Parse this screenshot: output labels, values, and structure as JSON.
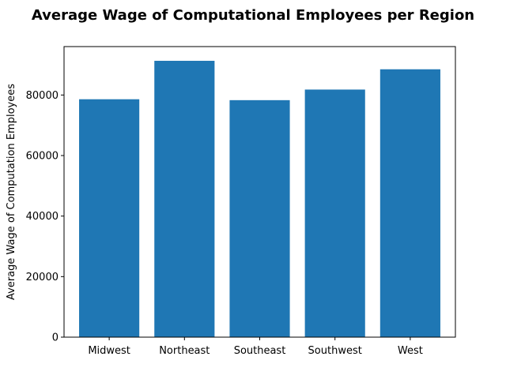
{
  "chart_data": {
    "type": "bar",
    "title": "Average Wage of Computational Employees per Region",
    "xlabel": "",
    "ylabel": "Average Wage of Computation Employees",
    "categories": [
      "Midwest",
      "Northeast",
      "Southeast",
      "Southwest",
      "West"
    ],
    "values": [
      78600,
      91300,
      78300,
      81800,
      88500
    ],
    "ylim": [
      0,
      96000
    ],
    "yticks": [
      "0",
      "20000",
      "40000",
      "60000",
      "80000"
    ],
    "grid": false,
    "bar_color": "#1f77b4"
  }
}
